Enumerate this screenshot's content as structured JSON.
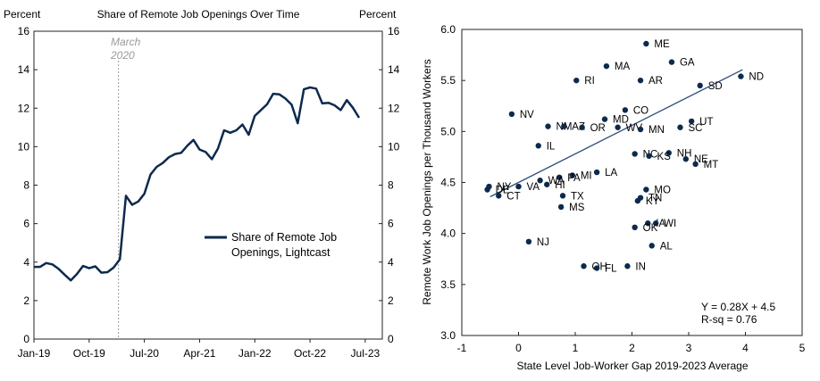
{
  "chart_data": [
    {
      "type": "line",
      "title": "Share of Remote Job Openings Over Time",
      "ylabel_left": "Percent",
      "ylabel_right": "Percent",
      "ylim": [
        0,
        16
      ],
      "yticks": [
        0,
        2,
        4,
        6,
        8,
        10,
        12,
        14,
        16
      ],
      "xticks": [
        "Jan-19",
        "Oct-19",
        "Jul-20",
        "Apr-21",
        "Jan-22",
        "Oct-22",
        "Jul-23"
      ],
      "annotation": {
        "line1": "March",
        "line2": "2020",
        "month_index": 14
      },
      "legend": {
        "line1": "Share of Remote Job",
        "line2": "Openings, Lightcast"
      },
      "series": [
        {
          "name": "Share of Remote Job Openings, Lightcast",
          "color": "#0d2a4d",
          "values": [
            3.75,
            3.75,
            3.95,
            3.88,
            3.65,
            3.35,
            3.05,
            3.38,
            3.8,
            3.68,
            3.78,
            3.45,
            3.48,
            3.72,
            4.15,
            7.45,
            6.98,
            7.15,
            7.55,
            8.55,
            8.95,
            9.15,
            9.45,
            9.62,
            9.68,
            10.05,
            10.35,
            9.85,
            9.72,
            9.35,
            9.9,
            10.85,
            10.72,
            10.85,
            11.15,
            10.62,
            11.6,
            11.9,
            12.2,
            12.75,
            12.72,
            12.5,
            12.18,
            11.22,
            12.98,
            13.08,
            13.02,
            12.25,
            12.28,
            12.15,
            11.9,
            12.42,
            12.02,
            11.5
          ]
        }
      ]
    },
    {
      "type": "scatter",
      "xlabel": "State Level Job-Worker Gap 2019-2023 Average",
      "ylabel": "Remote Work Job Openings per Thousand Workers",
      "xlim": [
        -1,
        5
      ],
      "ylim": [
        3.0,
        6.0
      ],
      "xticks": [
        -1,
        0,
        1,
        2,
        3,
        4,
        5
      ],
      "yticks": [
        "3.0",
        "3.5",
        "4.0",
        "4.5",
        "5.0",
        "5.5",
        "6.0"
      ],
      "point_color": "#0d2a4d",
      "trend_color": "#2e4f7a",
      "trendline": {
        "slope": 0.28,
        "intercept": 4.5,
        "x_start": -0.5,
        "x_end": 3.95
      },
      "regression_text": {
        "line1": "Y = 0.28X  + 4.5",
        "line2": "R-sq = 0.76"
      },
      "points": [
        {
          "label": "ME",
          "x": 2.25,
          "y": 5.86
        },
        {
          "label": "GA",
          "x": 2.7,
          "y": 5.68
        },
        {
          "label": "MA",
          "x": 1.55,
          "y": 5.64
        },
        {
          "label": "ND",
          "x": 3.92,
          "y": 5.54
        },
        {
          "label": "RI",
          "x": 1.02,
          "y": 5.5
        },
        {
          "label": "AR",
          "x": 2.15,
          "y": 5.5
        },
        {
          "label": "SD",
          "x": 3.2,
          "y": 5.45
        },
        {
          "label": "CO",
          "x": 1.88,
          "y": 5.21
        },
        {
          "label": "NV",
          "x": -0.12,
          "y": 5.17
        },
        {
          "label": "MD",
          "x": 1.52,
          "y": 5.12
        },
        {
          "label": "UT",
          "x": 3.05,
          "y": 5.1
        },
        {
          "label": "NM",
          "x": 0.52,
          "y": 5.05
        },
        {
          "label": "AZ",
          "x": 0.8,
          "y": 5.05
        },
        {
          "label": "OR",
          "x": 1.12,
          "y": 5.04
        },
        {
          "label": "WV",
          "x": 1.75,
          "y": 5.04
        },
        {
          "label": "SC",
          "x": 2.85,
          "y": 5.04
        },
        {
          "label": "MN",
          "x": 2.15,
          "y": 5.02
        },
        {
          "label": "IL",
          "x": 0.35,
          "y": 4.86
        },
        {
          "label": "NH",
          "x": 2.65,
          "y": 4.79
        },
        {
          "label": "NC",
          "x": 2.05,
          "y": 4.78
        },
        {
          "label": "KS",
          "x": 2.3,
          "y": 4.76
        },
        {
          "label": "NE",
          "x": 2.95,
          "y": 4.73
        },
        {
          "label": "MT",
          "x": 3.12,
          "y": 4.68
        },
        {
          "label": "LA",
          "x": 1.38,
          "y": 4.6
        },
        {
          "label": "MI",
          "x": 0.95,
          "y": 4.57
        },
        {
          "label": "PA",
          "x": 0.72,
          "y": 4.55
        },
        {
          "label": "WA",
          "x": 0.38,
          "y": 4.52
        },
        {
          "label": "HI",
          "x": 0.5,
          "y": 4.48
        },
        {
          "label": "NY",
          "x": -0.52,
          "y": 4.46
        },
        {
          "label": "DE",
          "x": -0.55,
          "y": 4.43
        },
        {
          "label": "VA",
          "x": 0.0,
          "y": 4.46
        },
        {
          "label": "MO",
          "x": 2.25,
          "y": 4.43
        },
        {
          "label": "CT",
          "x": -0.35,
          "y": 4.37
        },
        {
          "label": "TX",
          "x": 0.78,
          "y": 4.37
        },
        {
          "label": "TN",
          "x": 2.15,
          "y": 4.35
        },
        {
          "label": "KY",
          "x": 2.1,
          "y": 4.32
        },
        {
          "label": "MS",
          "x": 0.75,
          "y": 4.26
        },
        {
          "label": "IA",
          "x": 2.28,
          "y": 4.1
        },
        {
          "label": "WI",
          "x": 2.42,
          "y": 4.1
        },
        {
          "label": "OK",
          "x": 2.05,
          "y": 4.06
        },
        {
          "label": "NJ",
          "x": 0.18,
          "y": 3.92
        },
        {
          "label": "AL",
          "x": 2.35,
          "y": 3.88
        },
        {
          "label": "OH",
          "x": 1.15,
          "y": 3.68
        },
        {
          "label": "FL",
          "x": 1.38,
          "y": 3.66
        },
        {
          "label": "IN",
          "x": 1.92,
          "y": 3.68
        }
      ]
    }
  ]
}
